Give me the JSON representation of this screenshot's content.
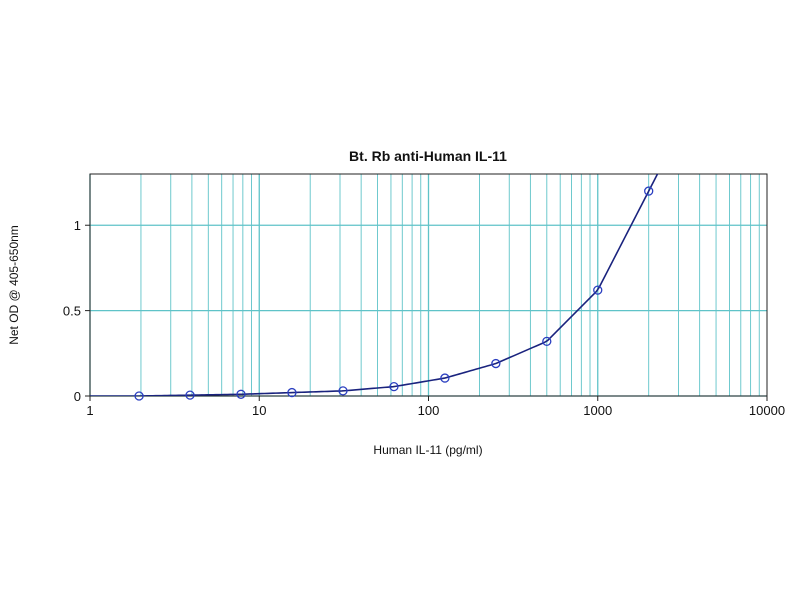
{
  "chart_data": {
    "type": "scatter",
    "title": "Bt. Rb anti-Human IL-11",
    "xlabel": "Human IL-11 (pg/ml)",
    "ylabel": "Net OD @ 405-650nm",
    "x_scale": "log",
    "xlim": [
      1,
      10000
    ],
    "ylim": [
      0,
      1.3
    ],
    "x_ticks": [
      1,
      10,
      100,
      1000,
      10000
    ],
    "x_tick_labels": [
      "1",
      "10",
      "100",
      "1000",
      "10000"
    ],
    "y_ticks": [
      0,
      0.5,
      1
    ],
    "y_tick_labels": [
      "0",
      "0.5",
      "1"
    ],
    "grid": true,
    "series": [
      {
        "x": [
          1.95,
          3.9,
          7.8,
          15.6,
          31.25,
          62.5,
          125,
          250,
          500,
          1000,
          2000
        ],
        "y": [
          0.0,
          0.005,
          0.01,
          0.02,
          0.03,
          0.055,
          0.105,
          0.19,
          0.32,
          0.62,
          1.2
        ]
      }
    ],
    "colors": {
      "grid": "#5fc3c8",
      "series": "#1a237e",
      "marker": "#2a3ec0"
    }
  }
}
